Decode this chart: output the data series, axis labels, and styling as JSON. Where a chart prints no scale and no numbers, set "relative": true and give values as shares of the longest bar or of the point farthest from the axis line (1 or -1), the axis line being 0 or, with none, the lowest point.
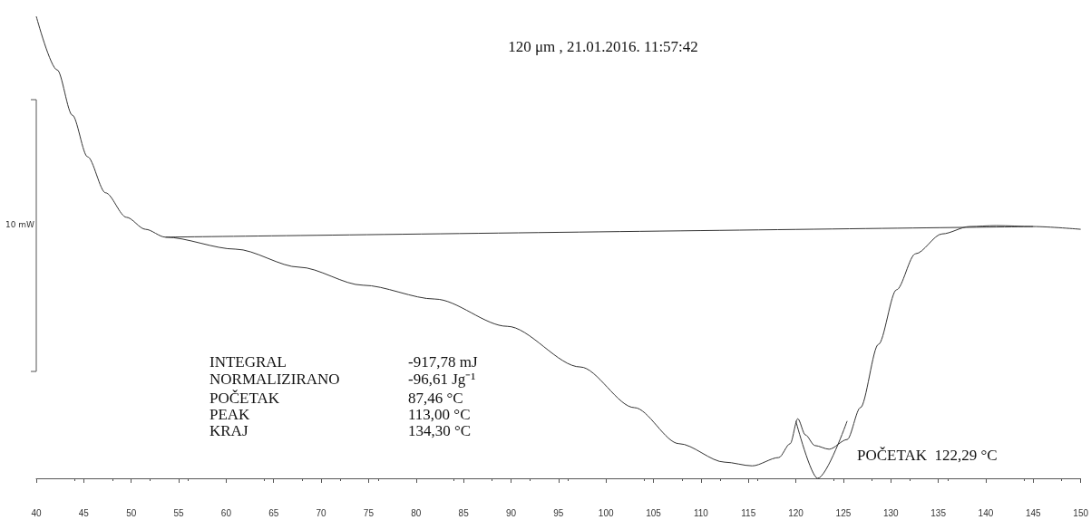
{
  "chart_data": {
    "type": "line",
    "relative": true,
    "title": "120 μm , 21.01.2016. 11:57:42",
    "xlim": [
      40,
      150
    ],
    "xticks": [
      40,
      45,
      50,
      55,
      60,
      65,
      70,
      75,
      80,
      85,
      90,
      95,
      100,
      105,
      110,
      115,
      120,
      125,
      130,
      135,
      140,
      145,
      150
    ],
    "grid": false,
    "marker": "none",
    "line_style": "solid",
    "series": [
      {
        "color": "#333333",
        "x": [
          40,
          42.2,
          43.8,
          45.4,
          47.3,
          49.5,
          51.5,
          53.6,
          61,
          67.7,
          74.4,
          82,
          89.6,
          97.3,
          103,
          107.7,
          112.5,
          115.4,
          118.2,
          119.4,
          120.2,
          121,
          122,
          123.5,
          125.4,
          126.8,
          128.7,
          130.6,
          132.6,
          135.4,
          138.3,
          141.1,
          145,
          150
        ],
        "values": [
          1.0,
          0.884,
          0.786,
          0.696,
          0.618,
          0.565,
          0.539,
          0.522,
          0.496,
          0.457,
          0.418,
          0.388,
          0.329,
          0.241,
          0.153,
          0.075,
          0.035,
          0.027,
          0.045,
          0.075,
          0.129,
          0.094,
          0.071,
          0.063,
          0.084,
          0.153,
          0.29,
          0.408,
          0.486,
          0.529,
          0.545,
          0.547,
          0.545,
          0.539
        ]
      },
      {
        "color": "#333333",
        "x": [
          53.6,
          145
        ],
        "values": [
          0.522,
          0.545
        ]
      },
      {
        "color": "#333333",
        "x": [
          120.0,
          122.3,
          125.4
        ],
        "values": [
          0.124,
          0,
          0.124
        ]
      }
    ],
    "annotations": [
      "10 mW",
      "INTEGRAL",
      "-917,78 mJ",
      "NORMALIZIRANO",
      "-96,61 Jg⁻¹",
      "POČETAK",
      "87,46 °C",
      "PEAK",
      "113,00 °C",
      "KRAJ",
      "134,30 °C",
      "POČETAK  122,29 °C"
    ]
  }
}
